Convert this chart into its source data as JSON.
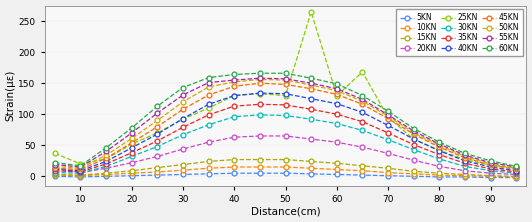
{
  "x": [
    5,
    10,
    15,
    20,
    25,
    30,
    35,
    40,
    45,
    50,
    55,
    60,
    65,
    70,
    75,
    80,
    85,
    90,
    95
  ],
  "series": {
    "5KN": [
      0,
      -1,
      0,
      1,
      2,
      3,
      4,
      5,
      5,
      5,
      4,
      3,
      2,
      1,
      0,
      -1,
      -1,
      -2,
      -2
    ],
    "10KN": [
      2,
      1,
      3,
      5,
      7,
      10,
      13,
      15,
      15,
      15,
      13,
      11,
      9,
      6,
      4,
      2,
      1,
      0,
      -1
    ],
    "15KN": [
      3,
      2,
      5,
      9,
      14,
      19,
      24,
      27,
      27,
      27,
      24,
      21,
      17,
      13,
      8,
      5,
      3,
      1,
      0
    ],
    "20KN": [
      14,
      6,
      13,
      22,
      32,
      44,
      55,
      63,
      65,
      65,
      60,
      55,
      47,
      37,
      26,
      16,
      9,
      5,
      3
    ],
    "25KN": [
      37,
      20,
      28,
      52,
      70,
      92,
      110,
      130,
      133,
      130,
      265,
      130,
      168,
      95,
      60,
      42,
      27,
      18,
      13
    ],
    "30KN": [
      6,
      5,
      16,
      32,
      48,
      67,
      83,
      96,
      99,
      98,
      92,
      85,
      74,
      59,
      43,
      28,
      16,
      9,
      5
    ],
    "35KN": [
      9,
      7,
      20,
      38,
      57,
      79,
      99,
      113,
      116,
      115,
      108,
      100,
      88,
      70,
      51,
      35,
      21,
      12,
      7
    ],
    "40KN": [
      11,
      9,
      24,
      46,
      68,
      93,
      116,
      130,
      134,
      133,
      125,
      117,
      103,
      82,
      60,
      41,
      25,
      15,
      9
    ],
    "45KN": [
      13,
      11,
      29,
      54,
      80,
      108,
      131,
      145,
      150,
      148,
      141,
      132,
      116,
      93,
      68,
      47,
      30,
      18,
      11
    ],
    "50KN": [
      16,
      13,
      34,
      61,
      90,
      120,
      144,
      152,
      156,
      155,
      147,
      138,
      121,
      97,
      70,
      50,
      32,
      20,
      13
    ],
    "55KN": [
      19,
      15,
      40,
      70,
      102,
      131,
      151,
      155,
      158,
      157,
      150,
      141,
      124,
      99,
      73,
      52,
      34,
      22,
      15
    ],
    "60KN": [
      22,
      17,
      46,
      78,
      113,
      143,
      159,
      164,
      166,
      166,
      158,
      149,
      130,
      105,
      77,
      55,
      37,
      25,
      16
    ]
  },
  "colors": {
    "5KN": "#4488FF",
    "10KN": "#FF8800",
    "15KN": "#AAAA00",
    "20KN": "#CC44CC",
    "25KN": "#88CC00",
    "30KN": "#00BBBB",
    "35KN": "#EE2222",
    "40KN": "#2244EE",
    "45KN": "#FF6600",
    "50KN": "#CCAA00",
    "55KN": "#AA22AA",
    "60KN": "#22AA44"
  },
  "xlabel": "Distance(cm)",
  "ylabel": "Strain(με)",
  "ylim": [
    -15,
    275
  ],
  "yticks": [
    0,
    50,
    100,
    150,
    200,
    250
  ],
  "xticks": [
    10,
    20,
    30,
    40,
    50,
    60,
    70,
    80,
    90
  ],
  "xlim": [
    3,
    97
  ],
  "legend_order": [
    "5KN",
    "10KN",
    "15KN",
    "20KN",
    "25KN",
    "30KN",
    "35KN",
    "40KN",
    "45KN",
    "50KN",
    "55KN",
    "60KN"
  ]
}
